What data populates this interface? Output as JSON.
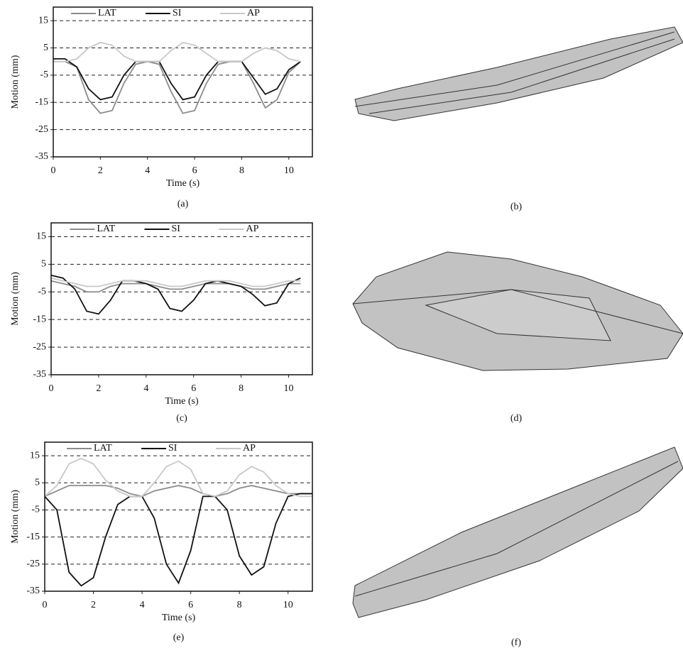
{
  "chart_data": [
    {
      "type": "line",
      "caption": "(a)",
      "xlabel": "Time (s)",
      "ylabel": "Motion (mm)",
      "x": [
        0,
        0.5,
        1,
        1.5,
        2,
        2.5,
        3,
        3.5,
        4,
        4.5,
        5,
        5.5,
        6,
        6.5,
        7,
        7.5,
        8,
        8.5,
        9,
        9.5,
        10,
        10.5
      ],
      "series": [
        {
          "name": "LAT",
          "color": "#8c8c8c",
          "values": [
            0,
            0,
            -2,
            -14,
            -19,
            -18,
            -8,
            -1,
            0,
            -1,
            -11,
            -19,
            -18,
            -8,
            -1,
            0,
            0,
            -8,
            -17,
            -14,
            -4,
            0
          ]
        },
        {
          "name": "SI",
          "color": "#111111",
          "values": [
            1,
            1,
            -2,
            -10,
            -14,
            -13,
            -5,
            0,
            0,
            0,
            -8,
            -14,
            -13,
            -5,
            0,
            0,
            0,
            -6,
            -12,
            -10,
            -3,
            0
          ]
        },
        {
          "name": "AP",
          "color": "#c8c8c8",
          "values": [
            0,
            0,
            1,
            5,
            7,
            6,
            2,
            0,
            0,
            0,
            4,
            7,
            6,
            3,
            0,
            0,
            0,
            3,
            5,
            4,
            1,
            0
          ]
        }
      ],
      "xlim": [
        0,
        11
      ],
      "ylim": [
        -35,
        20
      ],
      "xticks": [
        0,
        2,
        4,
        6,
        8,
        10
      ],
      "yticks": [
        -35,
        -25,
        -15,
        -5,
        5,
        15
      ],
      "grid": true,
      "legend": "top"
    },
    {
      "type": "line",
      "caption": "(c)",
      "xlabel": "Time (s)",
      "ylabel": "Motion (mm)",
      "x": [
        0,
        0.5,
        1,
        1.5,
        2,
        2.5,
        3,
        3.5,
        4,
        4.5,
        5,
        5.5,
        6,
        6.5,
        7,
        7.5,
        8,
        8.5,
        9,
        9.5,
        10,
        10.5
      ],
      "series": [
        {
          "name": "LAT",
          "color": "#8c8c8c",
          "values": [
            -1,
            -2,
            -3,
            -5,
            -5,
            -3,
            -2,
            -2,
            -2,
            -3,
            -4,
            -4,
            -3,
            -2,
            -2,
            -2,
            -3,
            -4,
            -4,
            -3,
            -2,
            -2
          ]
        },
        {
          "name": "SI",
          "color": "#111111",
          "values": [
            1,
            0,
            -4,
            -12,
            -13,
            -8,
            -1,
            -1,
            -2,
            -4,
            -11,
            -12,
            -8,
            -2,
            -1,
            -2,
            -3,
            -6,
            -10,
            -9,
            -2,
            0
          ]
        },
        {
          "name": "AP",
          "color": "#c8c8c8",
          "values": [
            0,
            -1,
            -2,
            -3,
            -3,
            -2,
            -1,
            -1,
            -1,
            -2,
            -3,
            -3,
            -2,
            -1,
            -1,
            -1,
            -2,
            -3,
            -3,
            -2,
            -1,
            -1
          ]
        }
      ],
      "xlim": [
        0,
        11
      ],
      "ylim": [
        -35,
        20
      ],
      "xticks": [
        0,
        2,
        4,
        6,
        8,
        10
      ],
      "yticks": [
        -35,
        -25,
        -15,
        -5,
        5,
        15
      ],
      "grid": true,
      "legend": "top"
    },
    {
      "type": "line",
      "caption": "(e)",
      "xlabel": "Time (s)",
      "ylabel": "Motion (mm)",
      "x": [
        0,
        0.5,
        1,
        1.5,
        2,
        2.5,
        3,
        3.5,
        4,
        4.5,
        5,
        5.5,
        6,
        6.5,
        7,
        7.5,
        8,
        8.5,
        9,
        9.5,
        10,
        10.5,
        11
      ],
      "series": [
        {
          "name": "LAT",
          "color": "#8c8c8c",
          "values": [
            0,
            2,
            4,
            4,
            4,
            4,
            3,
            1,
            0,
            2,
            3,
            4,
            3,
            1,
            0,
            1,
            3,
            4,
            3,
            2,
            1,
            1,
            1
          ]
        },
        {
          "name": "SI",
          "color": "#111111",
          "values": [
            0,
            -5,
            -28,
            -33,
            -30,
            -15,
            -3,
            0,
            0,
            -8,
            -25,
            -32,
            -20,
            0,
            0,
            -5,
            -22,
            -29,
            -26,
            -10,
            0,
            1,
            1
          ]
        },
        {
          "name": "AP",
          "color": "#c8c8c8",
          "values": [
            0,
            4,
            12,
            14,
            12,
            6,
            2,
            0,
            0,
            5,
            11,
            13,
            10,
            1,
            0,
            2,
            8,
            11,
            9,
            4,
            1,
            0,
            0
          ]
        }
      ],
      "xlim": [
        0,
        11
      ],
      "ylim": [
        -35,
        20
      ],
      "xticks": [
        0,
        2,
        4,
        6,
        8,
        10
      ],
      "yticks": [
        -35,
        -25,
        -15,
        -5,
        5,
        15
      ],
      "grid": true,
      "legend": "top"
    }
  ],
  "images": [
    {
      "caption": "(b)"
    },
    {
      "caption": "(d)"
    },
    {
      "caption": "(f)"
    }
  ]
}
